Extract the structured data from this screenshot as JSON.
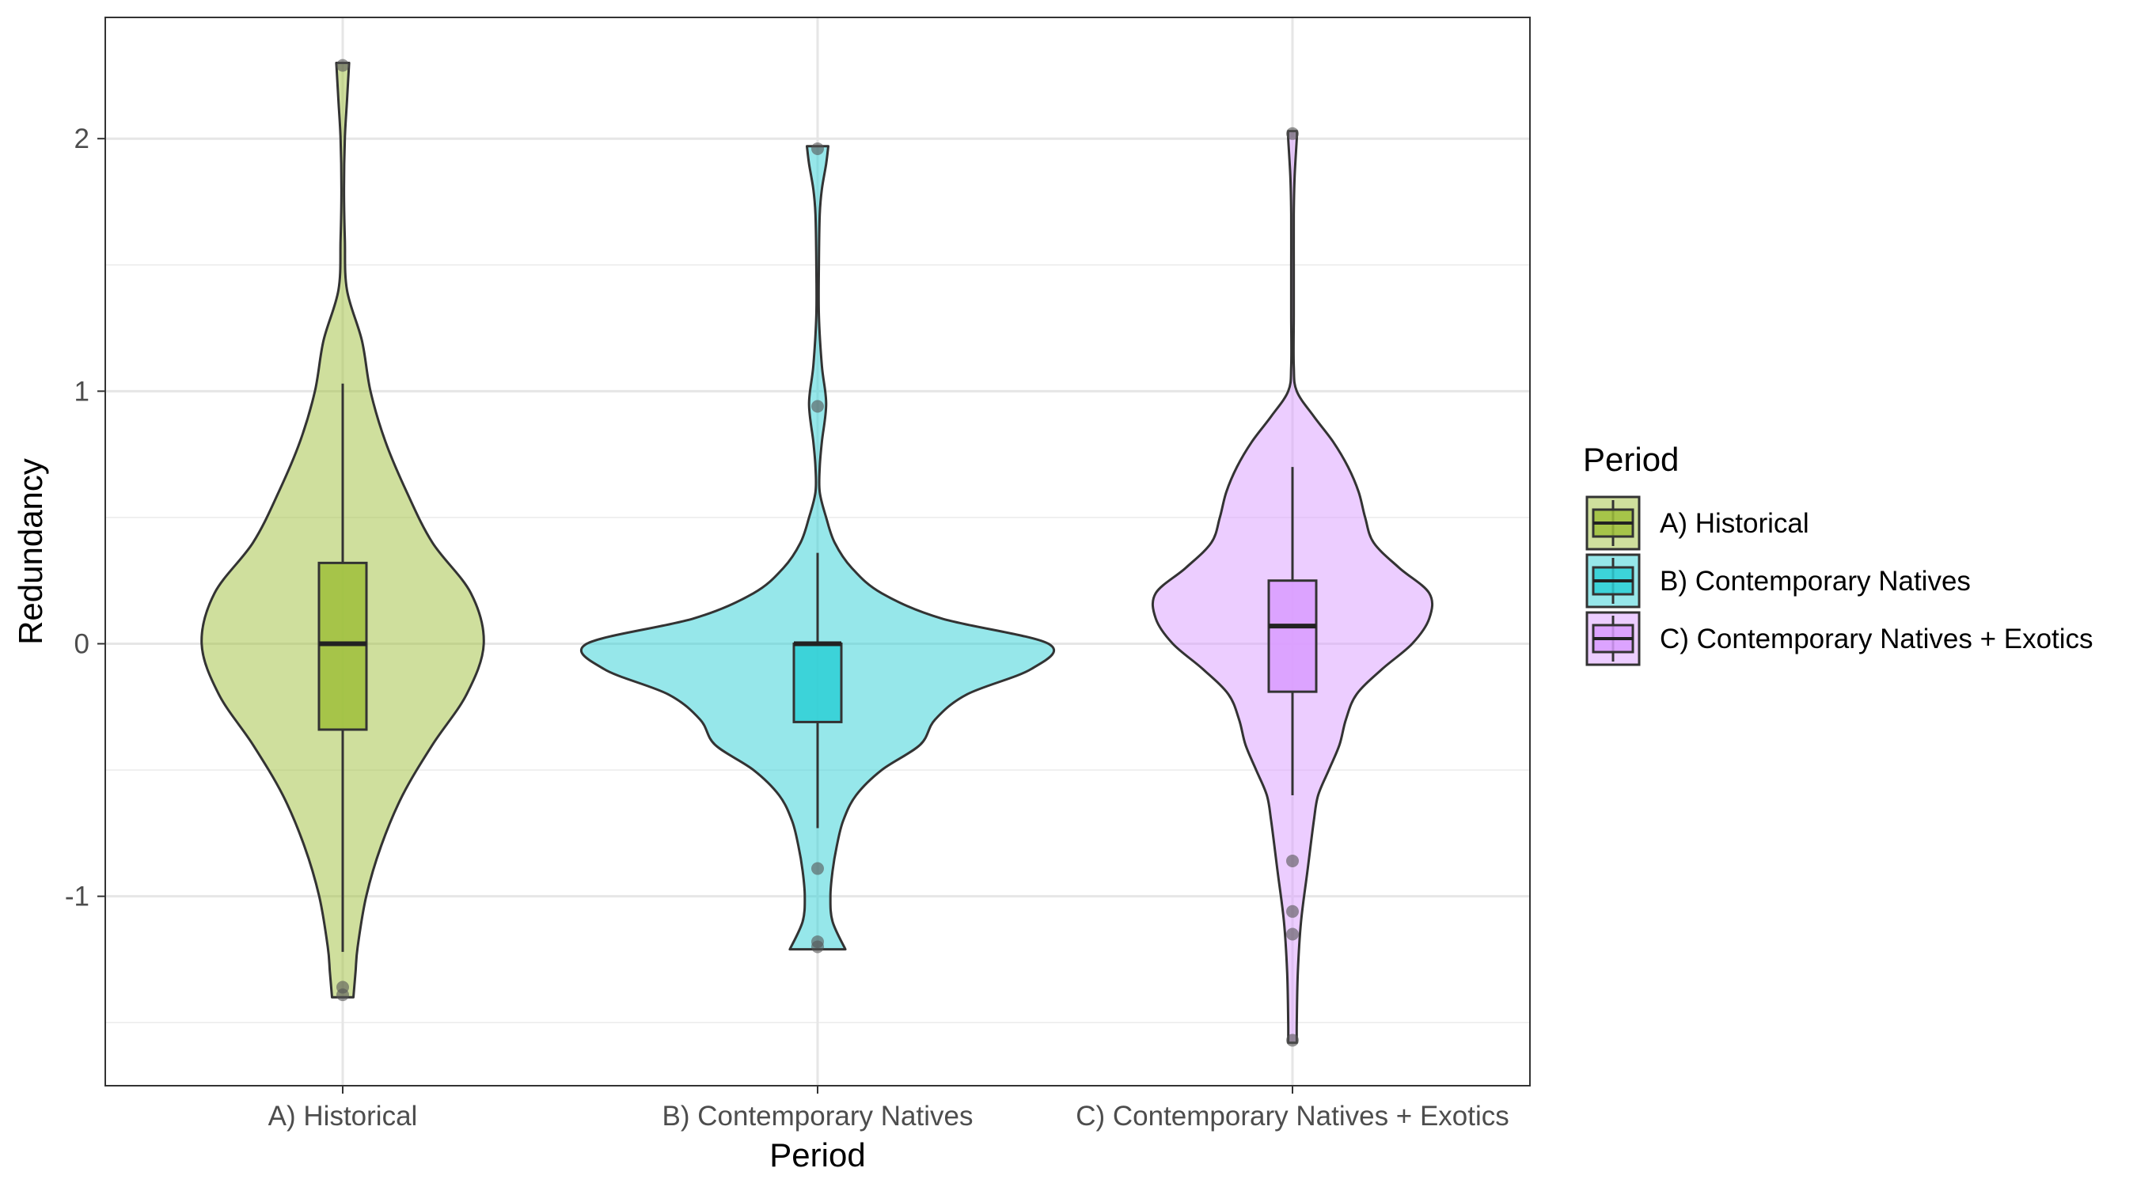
{
  "chart_data": {
    "type": "violin",
    "title": "",
    "xlabel": "Period",
    "ylabel": "Redundancy",
    "ylim": [
      -1.75,
      2.48
    ],
    "yticks": [
      -1,
      0,
      1,
      2
    ],
    "ytick_labels": [
      "-1",
      "0",
      "1",
      "2"
    ],
    "grid": true,
    "legend_title": "Period",
    "legend_position": "right",
    "categories": [
      "A) Historical",
      "B) Contemporary Natives",
      "C) Contemporary Natives + Exotics"
    ],
    "series": [
      {
        "name": "A) Historical",
        "color": "#9FBF3B",
        "range": [
          -1.4,
          2.3
        ],
        "box": {
          "q1": -0.34,
          "median": 0.0,
          "q3": 0.32,
          "whisker_low": -1.22,
          "whisker_high": 1.03
        },
        "outliers": [
          2.29,
          -1.36,
          -1.39
        ],
        "density": [
          [
            -1.4,
            0.05
          ],
          [
            -1.3,
            0.06
          ],
          [
            -1.2,
            0.07
          ],
          [
            -1.0,
            0.11
          ],
          [
            -0.8,
            0.18
          ],
          [
            -0.6,
            0.28
          ],
          [
            -0.4,
            0.42
          ],
          [
            -0.2,
            0.58
          ],
          [
            0.0,
            0.66
          ],
          [
            0.2,
            0.6
          ],
          [
            0.4,
            0.42
          ],
          [
            0.6,
            0.3
          ],
          [
            0.8,
            0.2
          ],
          [
            1.0,
            0.13
          ],
          [
            1.2,
            0.09
          ],
          [
            1.4,
            0.02
          ],
          [
            1.6,
            0.01
          ],
          [
            1.8,
            0.006
          ],
          [
            2.0,
            0.01
          ],
          [
            2.15,
            0.02
          ],
          [
            2.3,
            0.03
          ]
        ]
      },
      {
        "name": "B) Contemporary Natives",
        "color": "#2DCFD6",
        "range": [
          -1.21,
          1.97
        ],
        "box": {
          "q1": -0.31,
          "median": 0.0,
          "q3": 0.0,
          "whisker_low": -0.73,
          "whisker_high": 0.36
        },
        "outliers": [
          1.96,
          0.94,
          -0.89,
          -1.18,
          -1.2
        ],
        "density": [
          [
            -1.21,
            0.13
          ],
          [
            -1.1,
            0.07
          ],
          [
            -1.0,
            0.06
          ],
          [
            -0.9,
            0.07
          ],
          [
            -0.8,
            0.09
          ],
          [
            -0.7,
            0.12
          ],
          [
            -0.6,
            0.18
          ],
          [
            -0.5,
            0.3
          ],
          [
            -0.4,
            0.48
          ],
          [
            -0.3,
            0.55
          ],
          [
            -0.2,
            0.7
          ],
          [
            -0.1,
            1.0
          ],
          [
            0.0,
            1.08
          ],
          [
            0.1,
            0.58
          ],
          [
            0.2,
            0.3
          ],
          [
            0.3,
            0.16
          ],
          [
            0.4,
            0.08
          ],
          [
            0.5,
            0.04
          ],
          [
            0.6,
            0.01
          ],
          [
            0.7,
            0.01
          ],
          [
            0.8,
            0.02
          ],
          [
            0.95,
            0.04
          ],
          [
            1.1,
            0.02
          ],
          [
            1.3,
            0.006
          ],
          [
            1.5,
            0.006
          ],
          [
            1.7,
            0.01
          ],
          [
            1.8,
            0.02
          ],
          [
            1.9,
            0.04
          ],
          [
            1.97,
            0.05
          ]
        ]
      },
      {
        "name": "C) Contemporary Natives + Exotics",
        "color": "#D99BFF",
        "range": [
          -1.58,
          2.03
        ],
        "box": {
          "q1": -0.19,
          "median": 0.07,
          "q3": 0.25,
          "whisker_low": -0.6,
          "whisker_high": 0.7
        },
        "outliers": [
          2.02,
          -0.86,
          -1.06,
          -1.15,
          -1.57
        ],
        "density": [
          [
            -1.58,
            0.02
          ],
          [
            -1.5,
            0.02
          ],
          [
            -1.3,
            0.025
          ],
          [
            -1.1,
            0.04
          ],
          [
            -0.9,
            0.07
          ],
          [
            -0.7,
            0.1
          ],
          [
            -0.6,
            0.12
          ],
          [
            -0.5,
            0.17
          ],
          [
            -0.4,
            0.22
          ],
          [
            -0.3,
            0.25
          ],
          [
            -0.2,
            0.3
          ],
          [
            -0.1,
            0.42
          ],
          [
            0.0,
            0.56
          ],
          [
            0.1,
            0.64
          ],
          [
            0.2,
            0.64
          ],
          [
            0.3,
            0.5
          ],
          [
            0.4,
            0.38
          ],
          [
            0.5,
            0.34
          ],
          [
            0.6,
            0.31
          ],
          [
            0.7,
            0.26
          ],
          [
            0.8,
            0.19
          ],
          [
            0.9,
            0.1
          ],
          [
            1.0,
            0.02
          ],
          [
            1.1,
            0.006
          ],
          [
            1.3,
            0.006
          ],
          [
            1.5,
            0.006
          ],
          [
            1.7,
            0.006
          ],
          [
            1.85,
            0.01
          ],
          [
            2.0,
            0.02
          ],
          [
            2.03,
            0.02
          ]
        ]
      }
    ]
  }
}
